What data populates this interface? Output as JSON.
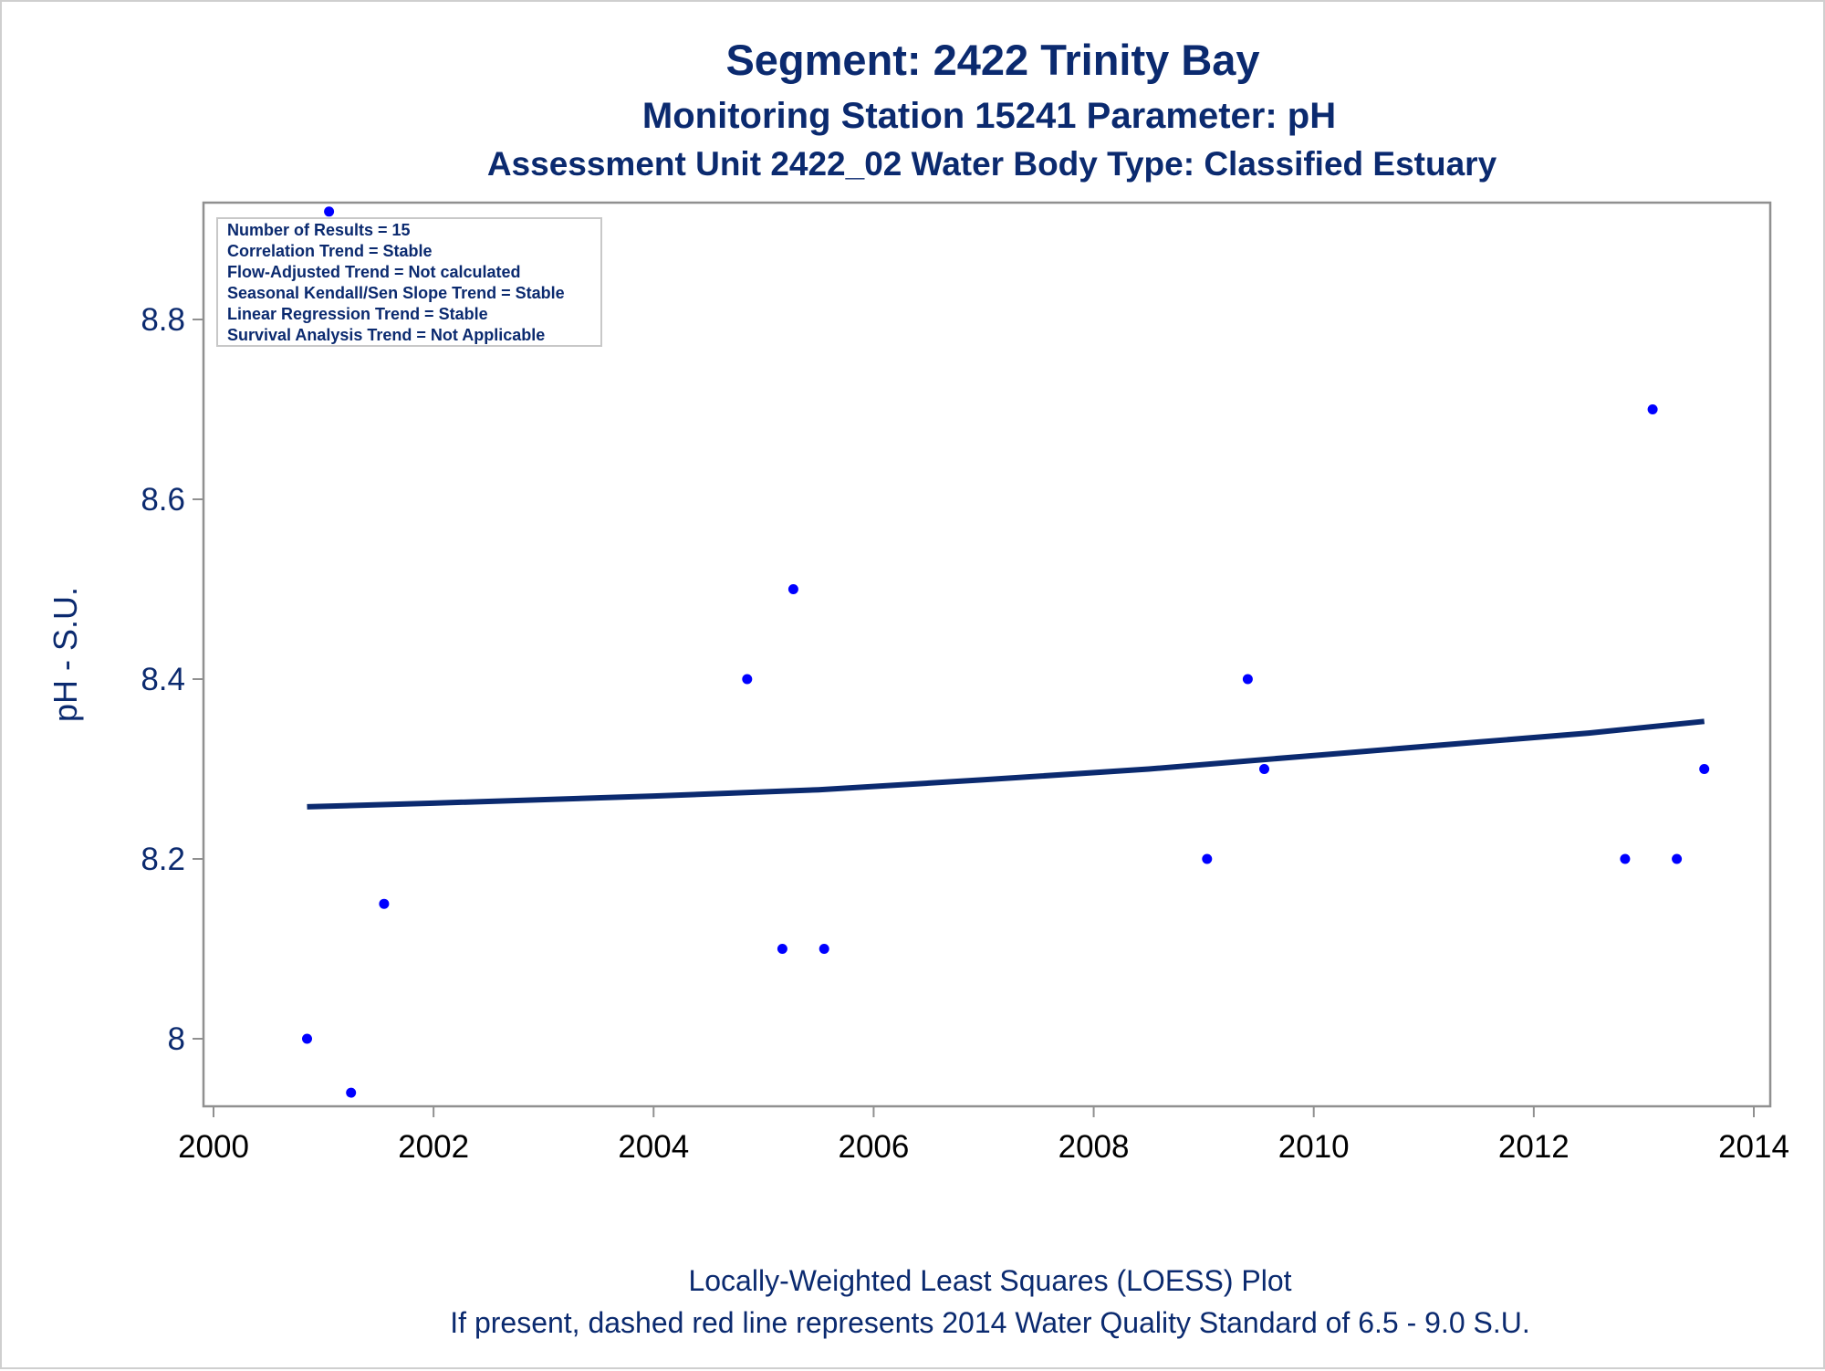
{
  "chart_data": {
    "type": "scatter",
    "title": "Segment: 2422  Trinity Bay",
    "subtitle": "Monitoring Station 15241 Parameter: pH",
    "subtitle2": "Assessment Unit 2422_02   Water Body Type: Classified Estuary",
    "xlabel": "",
    "ylabel": "pH - S.U.",
    "xlim": [
      2000,
      2014
    ],
    "ylim": [
      7.925,
      8.925
    ],
    "x_ticks": [
      2000,
      2002,
      2004,
      2006,
      2008,
      2010,
      2012,
      2014
    ],
    "y_ticks": [
      8,
      8.2,
      8.4,
      8.6,
      8.8
    ],
    "y_tick_labels": [
      "8",
      "8.2",
      "8.4",
      "8.6",
      "8.8"
    ],
    "grid": false,
    "points": [
      {
        "x": 2000.85,
        "y": 8.0
      },
      {
        "x": 2001.05,
        "y": 8.92
      },
      {
        "x": 2001.25,
        "y": 7.94
      },
      {
        "x": 2001.55,
        "y": 8.15
      },
      {
        "x": 2004.85,
        "y": 8.4
      },
      {
        "x": 2005.17,
        "y": 8.1
      },
      {
        "x": 2005.27,
        "y": 8.5
      },
      {
        "x": 2005.55,
        "y": 8.1
      },
      {
        "x": 2009.03,
        "y": 8.2
      },
      {
        "x": 2009.4,
        "y": 8.4
      },
      {
        "x": 2009.55,
        "y": 8.3
      },
      {
        "x": 2012.83,
        "y": 8.2
      },
      {
        "x": 2013.08,
        "y": 8.7
      },
      {
        "x": 2013.3,
        "y": 8.2
      },
      {
        "x": 2013.55,
        "y": 8.3
      }
    ],
    "trend_line": {
      "x": [
        2000.85,
        2002,
        2004,
        2005.5,
        2007,
        2008.5,
        2010,
        2011.5,
        2012.5,
        2013.55
      ],
      "y": [
        8.258,
        8.262,
        8.27,
        8.277,
        8.288,
        8.3,
        8.315,
        8.33,
        8.34,
        8.353
      ]
    },
    "inset_box": {
      "lines": [
        "Number of Results = 15",
        "Correlation Trend = Stable",
        "Flow-Adjusted Trend = Not calculated",
        "Seasonal Kendall/Sen Slope Trend = Stable",
        "Linear Regression Trend = Stable",
        "Survival Analysis Trend = Not Applicable"
      ],
      "position": "top-left"
    },
    "footnotes": [
      "Locally-Weighted Least Squares (LOESS) Plot",
      "If present, dashed red line represents 2014 Water Quality Standard of 6.5 - 9.0 S.U."
    ],
    "colors": {
      "points": "#0000ff",
      "trend_line": "#0b2a6f",
      "text": "#0b2a6f",
      "axis": "#909090"
    }
  }
}
